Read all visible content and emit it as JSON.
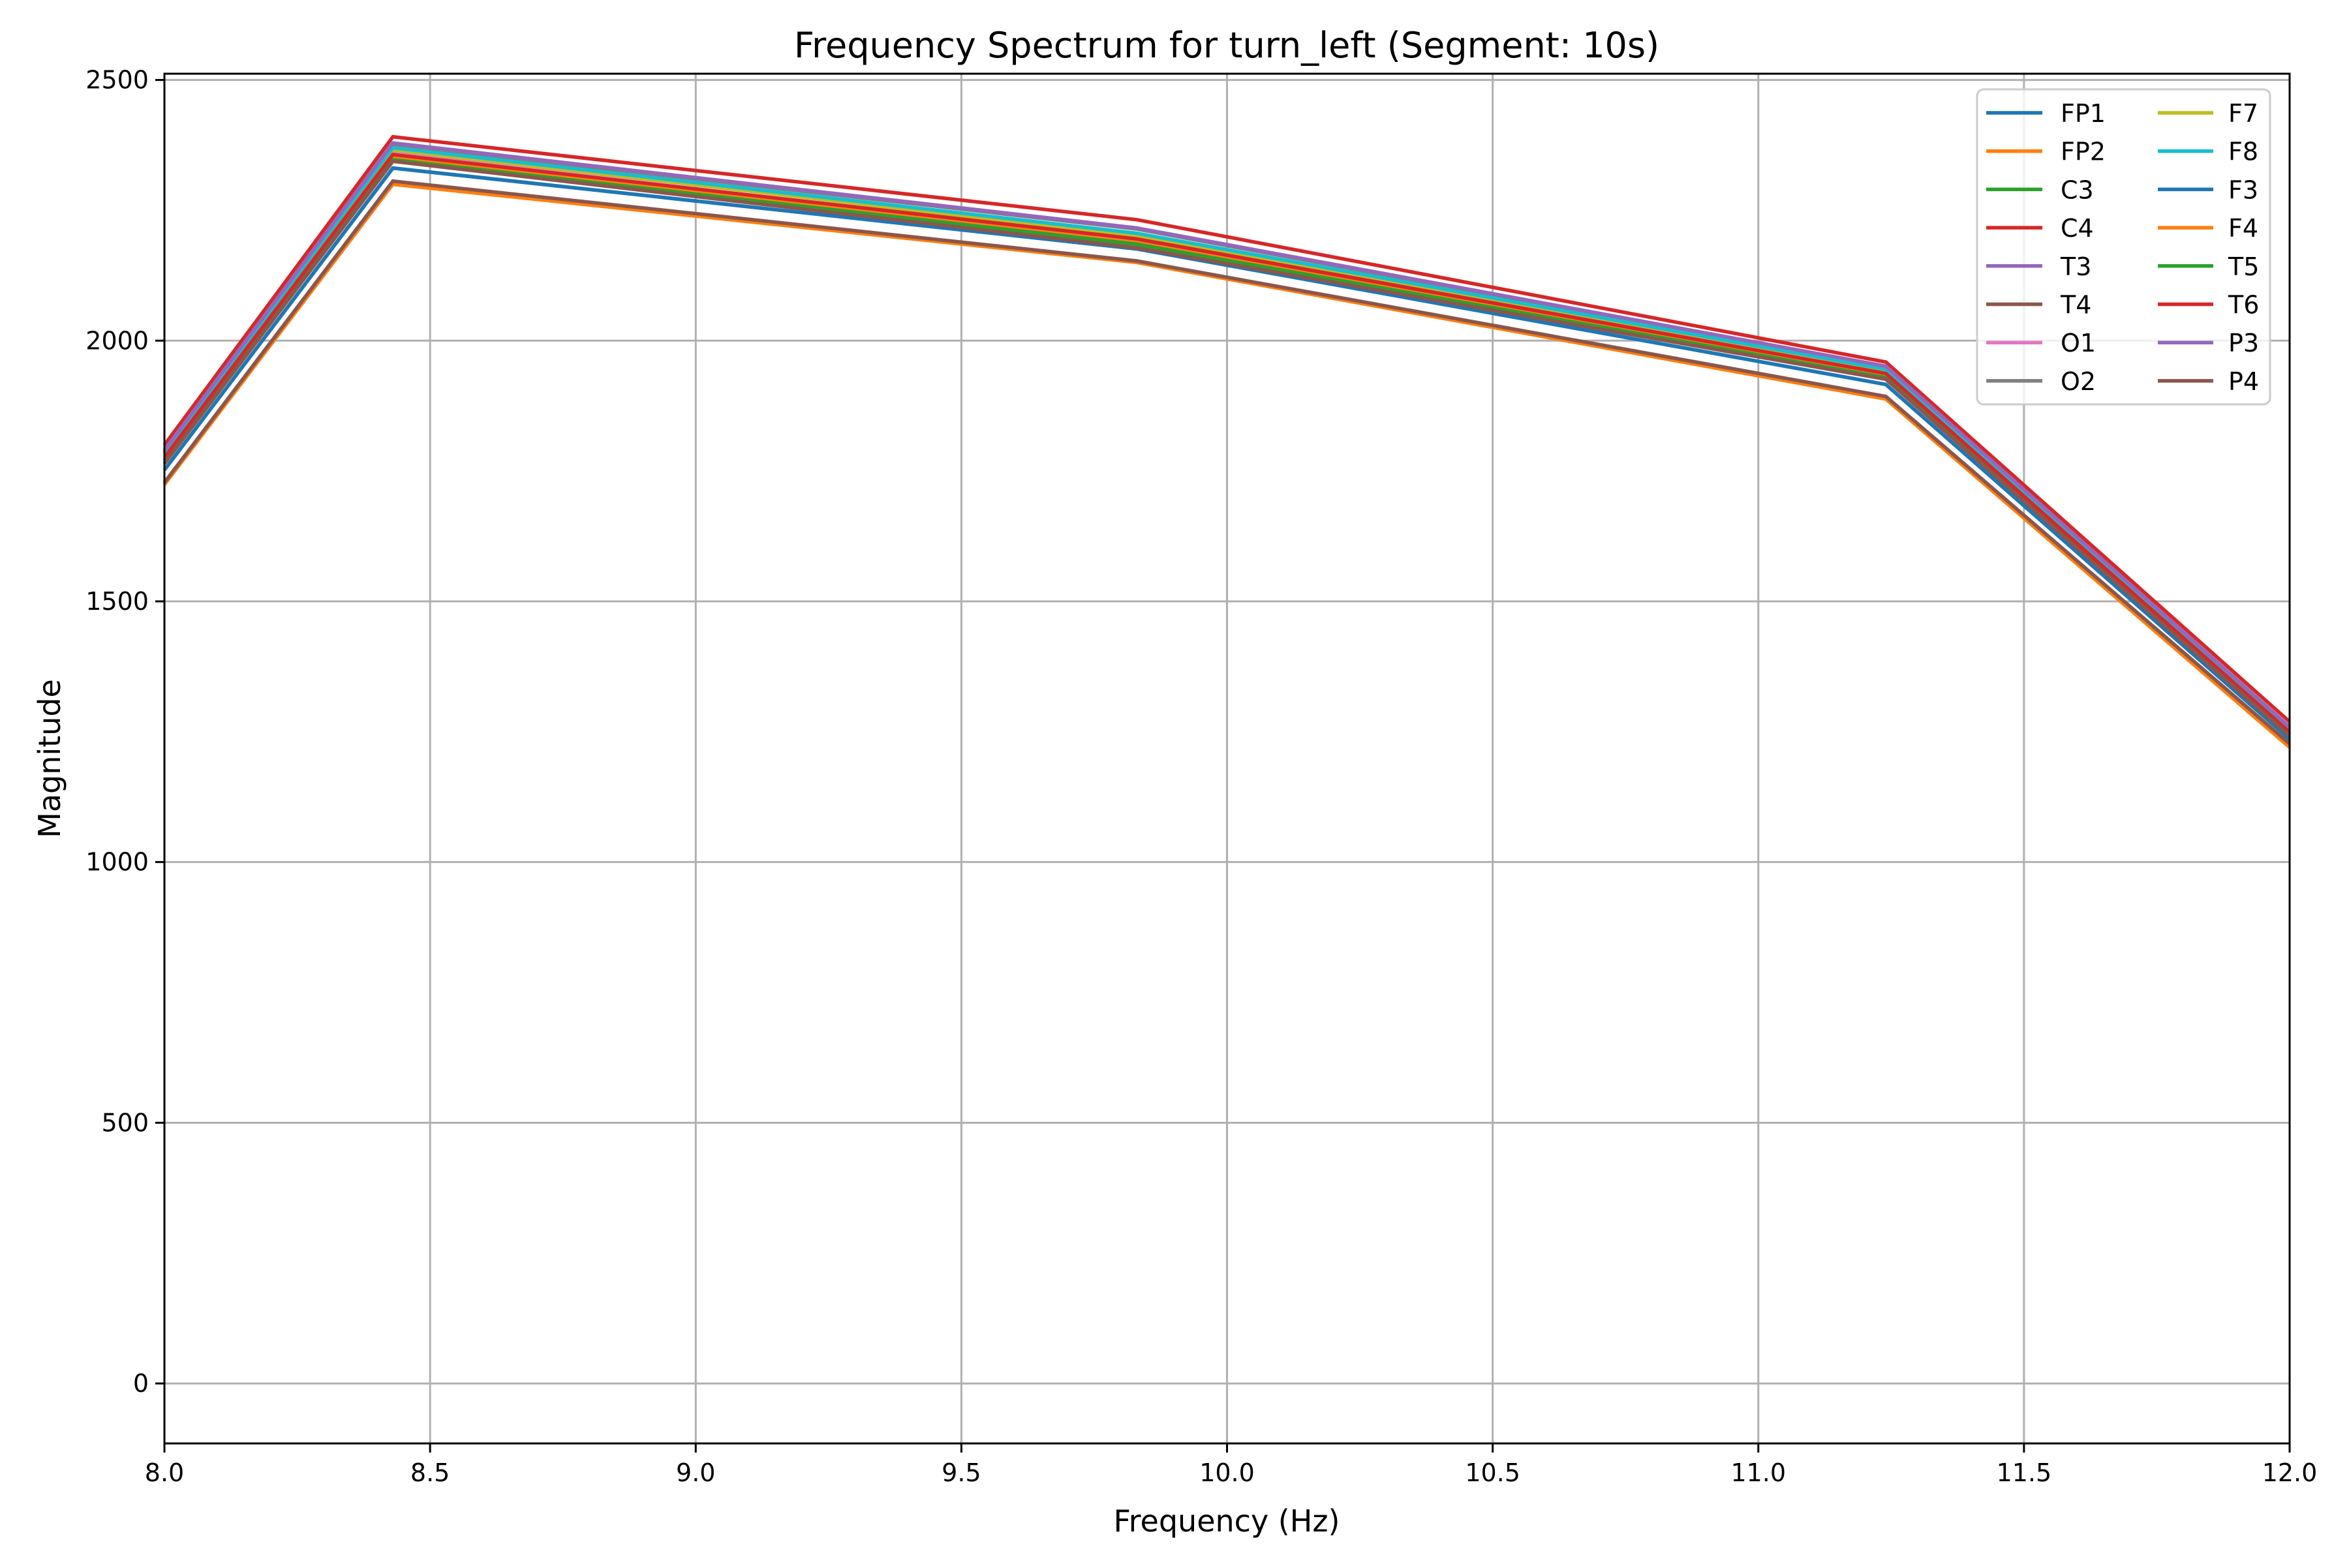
{
  "chart_data": {
    "type": "line",
    "title": "Frequency Spectrum for turn_left (Segment: 10s)",
    "xlabel": "Frequency (Hz)",
    "ylabel": "Magnitude",
    "xlim": [
      8.0,
      12.0
    ],
    "ylim": [
      -115,
      2512
    ],
    "grid": true,
    "legend_position": "upper right",
    "legend_columns": 2,
    "x_ticks": [
      8.0,
      8.5,
      9.0,
      9.5,
      10.0,
      10.5,
      11.0,
      11.5,
      12.0
    ],
    "x_tick_labels": [
      "8.0",
      "8.5",
      "9.0",
      "9.5",
      "10.0",
      "10.5",
      "11.0",
      "11.5",
      "12.0"
    ],
    "y_ticks": [
      0,
      500,
      1000,
      1500,
      2000,
      2500
    ],
    "y_tick_labels": [
      "0",
      "500",
      "1000",
      "1500",
      "2000",
      "2500"
    ],
    "x": [
      8.0,
      8.43,
      9.83,
      11.24,
      12.0
    ],
    "series": [
      {
        "name": "FP1",
        "color": "#1f77b4",
        "values": [
          1752,
          2331,
          2176,
          1916,
          1236
        ]
      },
      {
        "name": "FP2",
        "color": "#ff7f0e",
        "values": [
          1724,
          2300,
          2150,
          1888,
          1220
        ]
      },
      {
        "name": "C3",
        "color": "#2ca02c",
        "values": [
          1770,
          2347,
          2185,
          1929,
          1244
        ]
      },
      {
        "name": "C4",
        "color": "#d62728",
        "values": [
          1800,
          2391,
          2232,
          1959,
          1269
        ]
      },
      {
        "name": "T3",
        "color": "#9467bd",
        "values": [
          1790,
          2379,
          2216,
          1951,
          1259
        ]
      },
      {
        "name": "T4",
        "color": "#8c564b",
        "values": [
          1728,
          2306,
          2153,
          1893,
          1227
        ]
      },
      {
        "name": "O1",
        "color": "#e377c2",
        "values": [
          1782,
          2364,
          2203,
          1941,
          1254
        ]
      },
      {
        "name": "O2",
        "color": "#7f7f7f",
        "values": [
          1788,
          2376,
          2214,
          1949,
          1257
        ]
      },
      {
        "name": "F7",
        "color": "#bcbd22",
        "values": [
          1784,
          2366,
          2201,
          1942,
          1255
        ]
      },
      {
        "name": "F8",
        "color": "#17becf",
        "values": [
          1786,
          2370,
          2206,
          1945,
          1256
        ]
      },
      {
        "name": "F3",
        "color": "#1f77b4",
        "values": [
          1752,
          2331,
          2176,
          1916,
          1236
        ]
      },
      {
        "name": "F4",
        "color": "#ff7f0e",
        "values": [
          1772,
          2351,
          2188,
          1932,
          1246
        ]
      },
      {
        "name": "T5",
        "color": "#2ca02c",
        "values": [
          1770,
          2347,
          2185,
          1929,
          1244
        ]
      },
      {
        "name": "T6",
        "color": "#d62728",
        "values": [
          1776,
          2357,
          2195,
          1937,
          1249
        ]
      },
      {
        "name": "P3",
        "color": "#9467bd",
        "values": [
          1790,
          2379,
          2216,
          1951,
          1259
        ]
      },
      {
        "name": "P4",
        "color": "#8c564b",
        "values": [
          1764,
          2344,
          2178,
          1926,
          1242
        ]
      }
    ]
  }
}
